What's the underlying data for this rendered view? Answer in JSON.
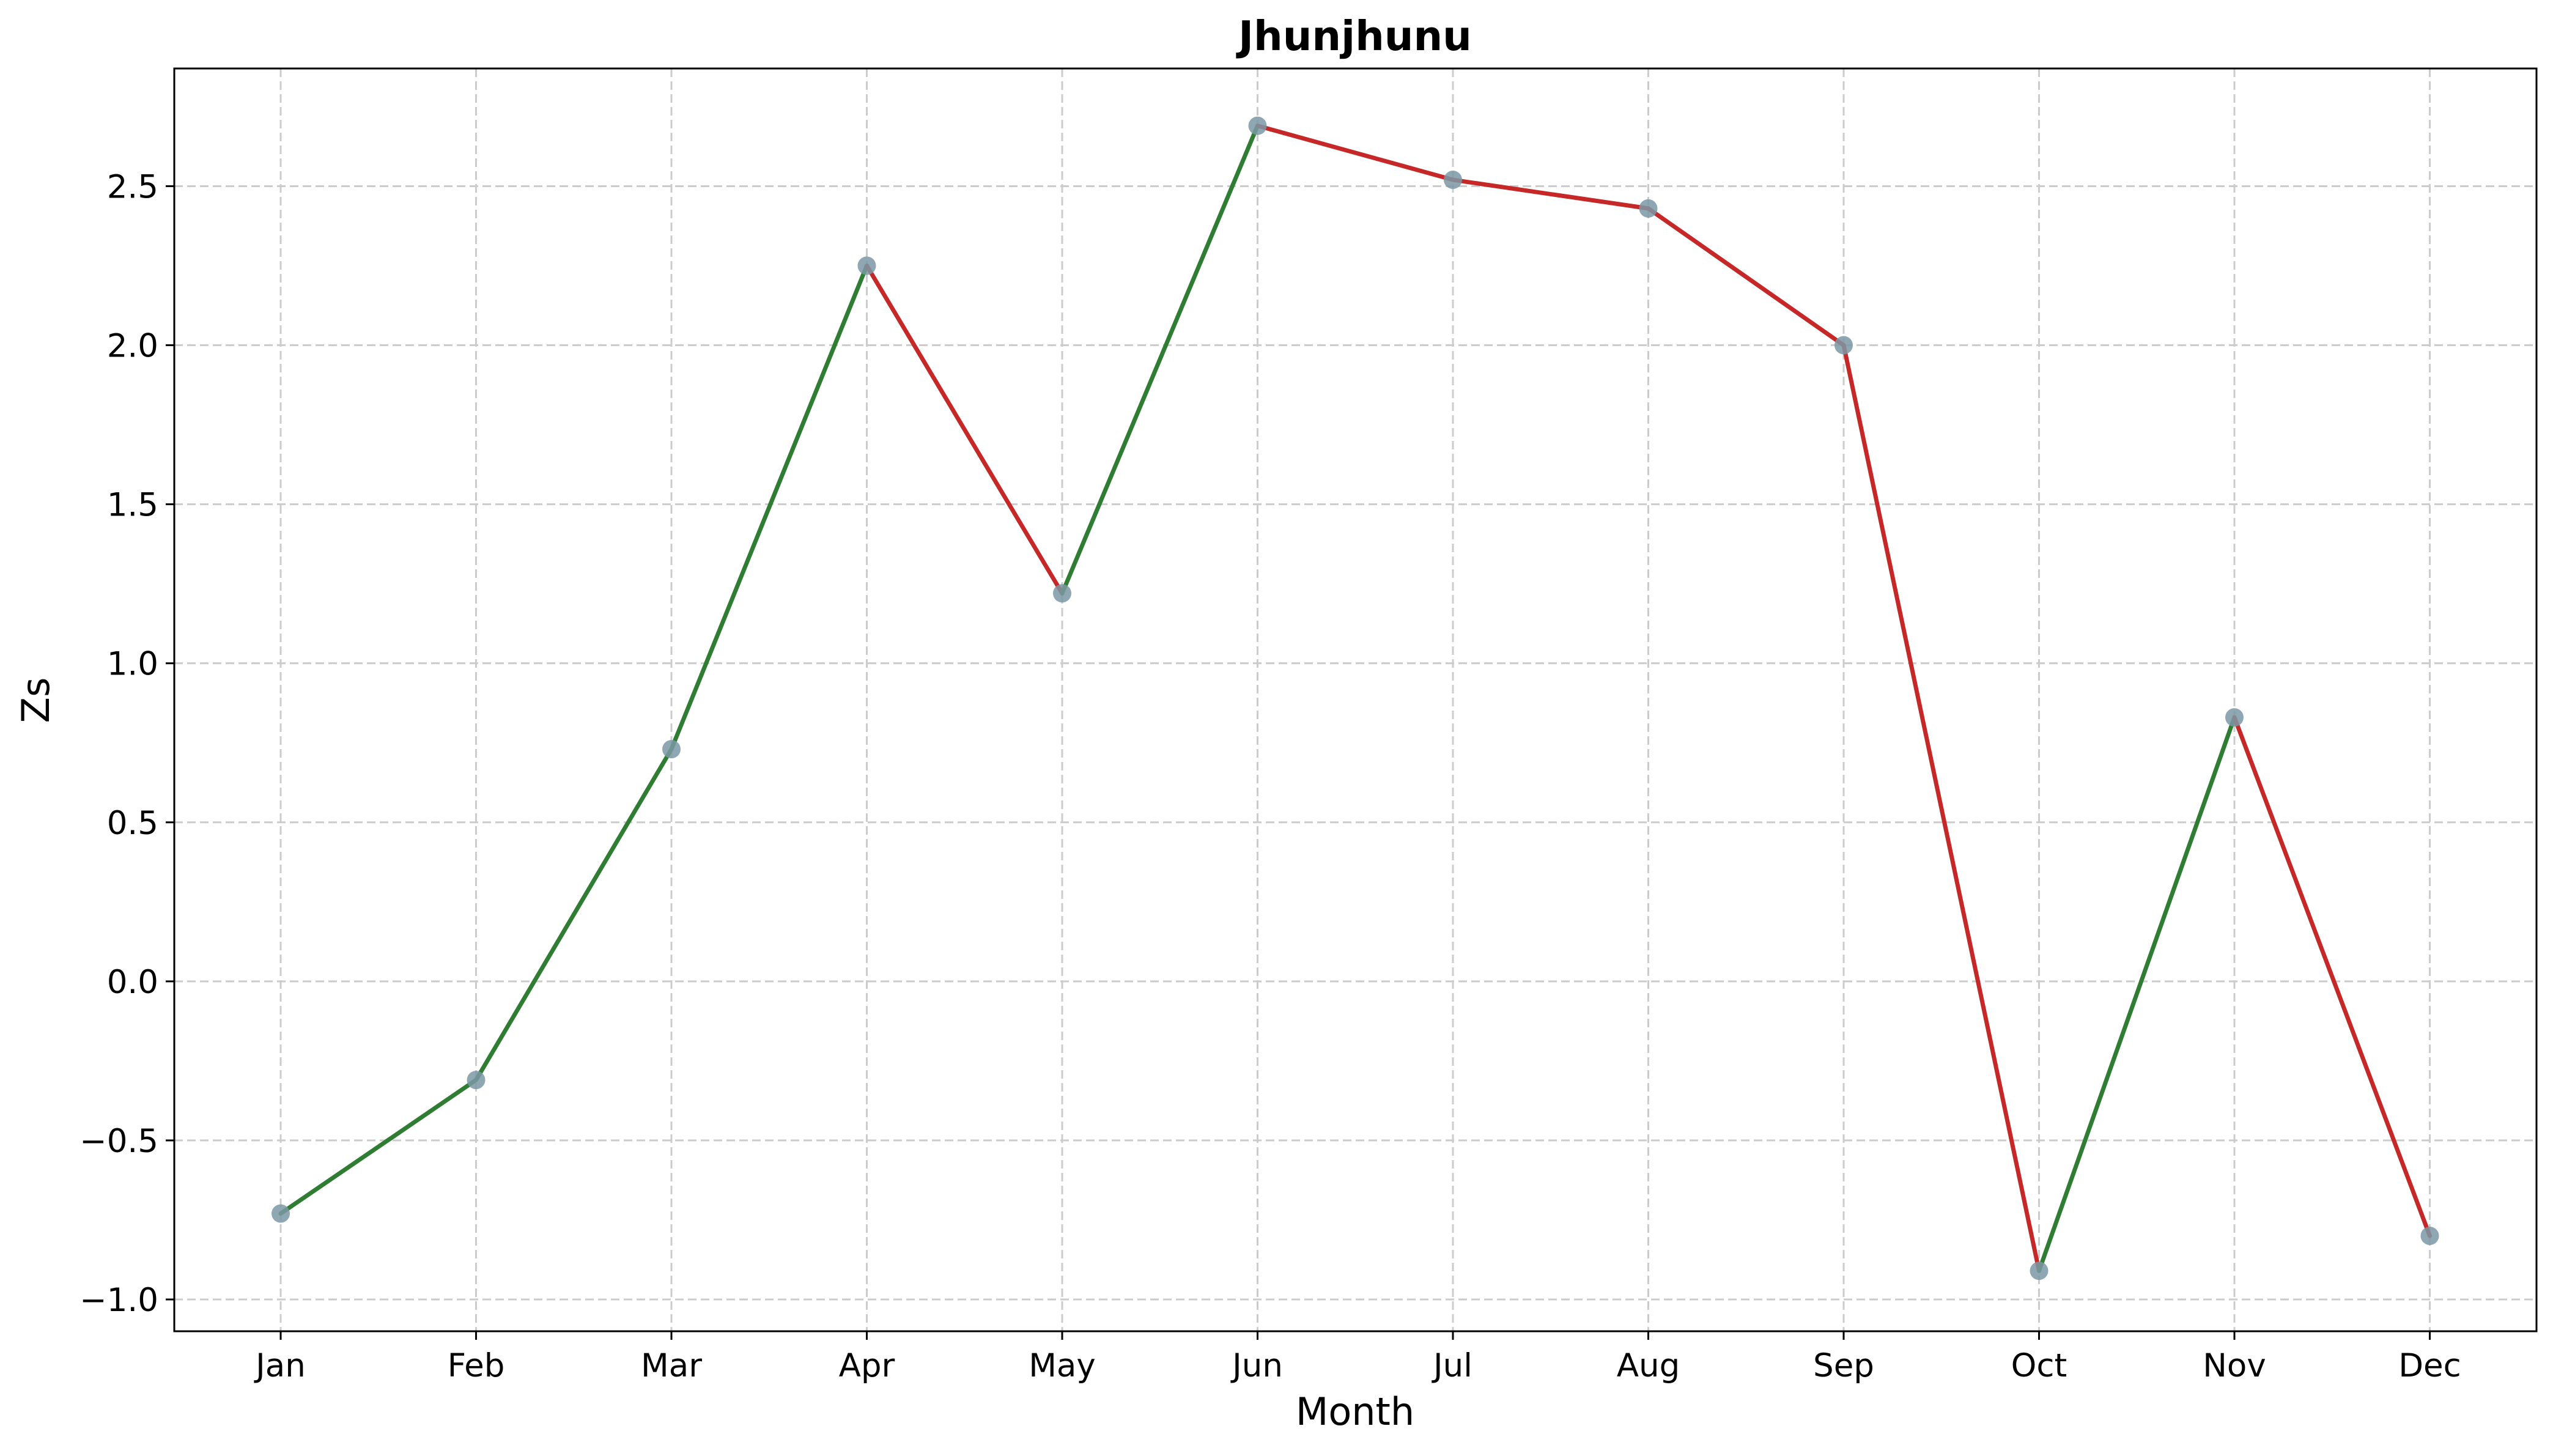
{
  "chart_data": {
    "type": "line",
    "title": "Jhunjhunu",
    "xlabel": "Month",
    "ylabel": "Zs",
    "categories": [
      "Jan",
      "Feb",
      "Mar",
      "Apr",
      "May",
      "Jun",
      "Jul",
      "Aug",
      "Sep",
      "Oct",
      "Nov",
      "Dec"
    ],
    "series": [
      {
        "values": [
          -0.73,
          -0.31,
          0.73,
          2.25,
          1.22,
          2.69,
          2.52,
          2.43,
          2.0,
          -0.91,
          0.83,
          -0.8
        ]
      }
    ],
    "ylim": [
      -1.1,
      2.87
    ],
    "yticks": [
      -1.0,
      -0.5,
      0.0,
      0.5,
      1.0,
      1.5,
      2.0,
      2.5
    ],
    "ytick_labels": [
      "−1.0",
      "−0.5",
      "0.0",
      "0.5",
      "1.0",
      "1.5",
      "2.0",
      "2.5"
    ],
    "grid": true,
    "colors": {
      "increase": "#2e7d32",
      "decrease": "#c62828",
      "marker": "#7b98a6"
    }
  }
}
